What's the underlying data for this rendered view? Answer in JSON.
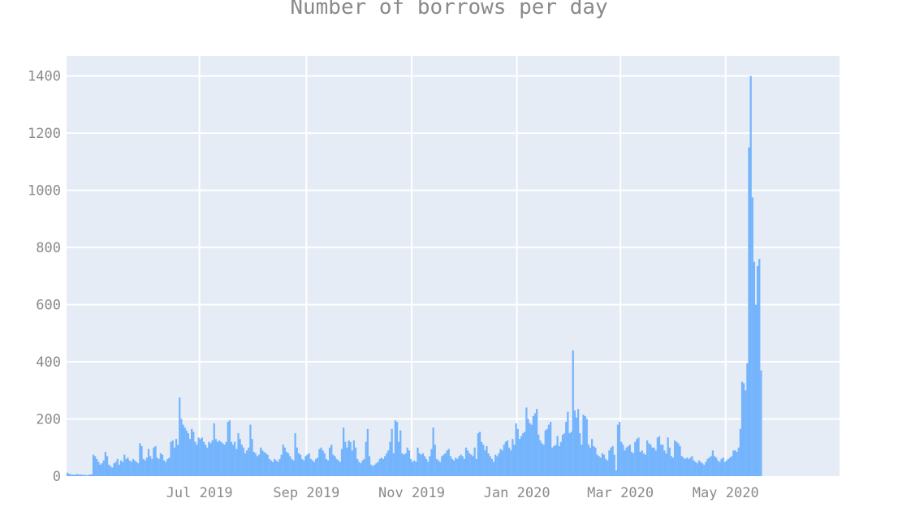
{
  "chart_data": {
    "type": "bar",
    "title": "Number of borrows per day",
    "xlabel": "",
    "ylabel": "",
    "x_start": "2019-04-15",
    "x_end": "2020-07-06",
    "ylim": [
      0,
      1470
    ],
    "y_ticks": [
      0,
      200,
      400,
      600,
      800,
      1000,
      1200,
      1400
    ],
    "x_ticks": [
      {
        "date": "2019-07-01",
        "label": "Jul 2019"
      },
      {
        "date": "2019-09-01",
        "label": "Sep 2019"
      },
      {
        "date": "2019-11-01",
        "label": "Nov 2019"
      },
      {
        "date": "2020-01-01",
        "label": "Jan 2020"
      },
      {
        "date": "2020-03-01",
        "label": "Mar 2020"
      },
      {
        "date": "2020-05-01",
        "label": "May 2020"
      }
    ],
    "grid": true,
    "bar_color": "#74b4fc",
    "plot_bg": "#e5ecf6",
    "series": [
      {
        "start": "2019-04-15",
        "values": [
          12,
          8,
          6,
          5,
          5,
          6,
          7,
          5,
          6,
          4,
          5,
          3,
          4,
          6,
          6,
          75,
          70,
          60,
          50,
          40,
          45,
          55,
          85,
          70,
          40,
          35,
          30,
          45,
          50,
          60,
          40,
          55,
          50,
          75,
          60,
          65,
          55,
          50,
          60,
          55,
          50,
          45,
          115,
          105,
          60,
          55,
          65,
          95,
          70,
          60,
          100,
          105,
          65,
          60,
          80,
          75,
          55,
          50,
          60,
          65,
          120,
          125,
          100,
          130,
          110,
          275,
          200,
          180,
          170,
          160,
          150,
          130,
          165,
          155,
          120,
          110,
          135,
          130,
          135,
          120,
          110,
          100,
          120,
          115,
          125,
          185,
          130,
          120,
          125,
          120,
          115,
          110,
          120,
          190,
          195,
          120,
          110,
          120,
          95,
          150,
          130,
          110,
          100,
          80,
          90,
          100,
          180,
          130,
          85,
          80,
          70,
          75,
          100,
          90,
          85,
          80,
          75,
          60,
          55,
          50,
          60,
          55,
          50,
          60,
          75,
          110,
          100,
          85,
          80,
          70,
          60,
          55,
          150,
          100,
          80,
          75,
          60,
          55,
          70,
          75,
          80,
          60,
          55,
          50,
          60,
          65,
          95,
          100,
          90,
          80,
          60,
          55,
          100,
          110,
          75,
          70,
          60,
          55,
          50,
          95,
          170,
          120,
          100,
          125,
          120,
          90,
          125,
          100,
          60,
          50,
          45,
          55,
          60,
          120,
          165,
          70,
          40,
          35,
          40,
          45,
          50,
          60,
          65,
          60,
          70,
          80,
          90,
          120,
          165,
          80,
          195,
          190,
          120,
          160,
          80,
          75,
          80,
          100,
          90,
          60,
          50,
          55,
          50,
          100,
          80,
          75,
          80,
          70,
          60,
          50,
          70,
          95,
          170,
          110,
          60,
          55,
          50,
          70,
          75,
          80,
          90,
          95,
          70,
          60,
          55,
          65,
          60,
          70,
          75,
          70,
          60,
          100,
          90,
          80,
          75,
          70,
          100,
          60,
          150,
          155,
          120,
          110,
          90,
          105,
          80,
          70,
          60,
          50,
          75,
          70,
          80,
          95,
          90,
          110,
          120,
          125,
          100,
          90,
          130,
          110,
          185,
          165,
          130,
          140,
          150,
          155,
          240,
          200,
          185,
          180,
          210,
          220,
          235,
          145,
          125,
          115,
          110,
          160,
          165,
          180,
          190,
          100,
          105,
          110,
          140,
          105,
          120,
          145,
          150,
          190,
          225,
          150,
          155,
          440,
          230,
          205,
          235,
          150,
          110,
          215,
          210,
          200,
          110,
          100,
          130,
          105,
          100,
          75,
          70,
          65,
          80,
          75,
          60,
          55,
          90,
          100,
          105,
          75,
          20,
          180,
          190,
          120,
          110,
          90,
          100,
          105,
          110,
          85,
          80,
          120,
          130,
          135,
          85,
          90,
          80,
          75,
          125,
          115,
          110,
          100,
          100,
          90,
          135,
          140,
          110,
          110,
          90,
          80,
          135,
          100,
          70,
          65,
          125,
          120,
          115,
          105,
          70,
          65,
          60,
          65,
          60,
          65,
          70,
          55,
          50,
          45,
          55,
          50,
          45,
          40,
          50,
          60,
          65,
          70,
          90,
          70,
          65,
          55,
          50,
          60,
          65,
          50,
          55,
          60,
          65,
          70,
          90,
          90,
          85,
          100,
          165,
          330,
          325,
          300,
          395,
          1150,
          1400,
          975,
          750,
          600,
          735,
          760,
          370
        ]
      }
    ]
  }
}
